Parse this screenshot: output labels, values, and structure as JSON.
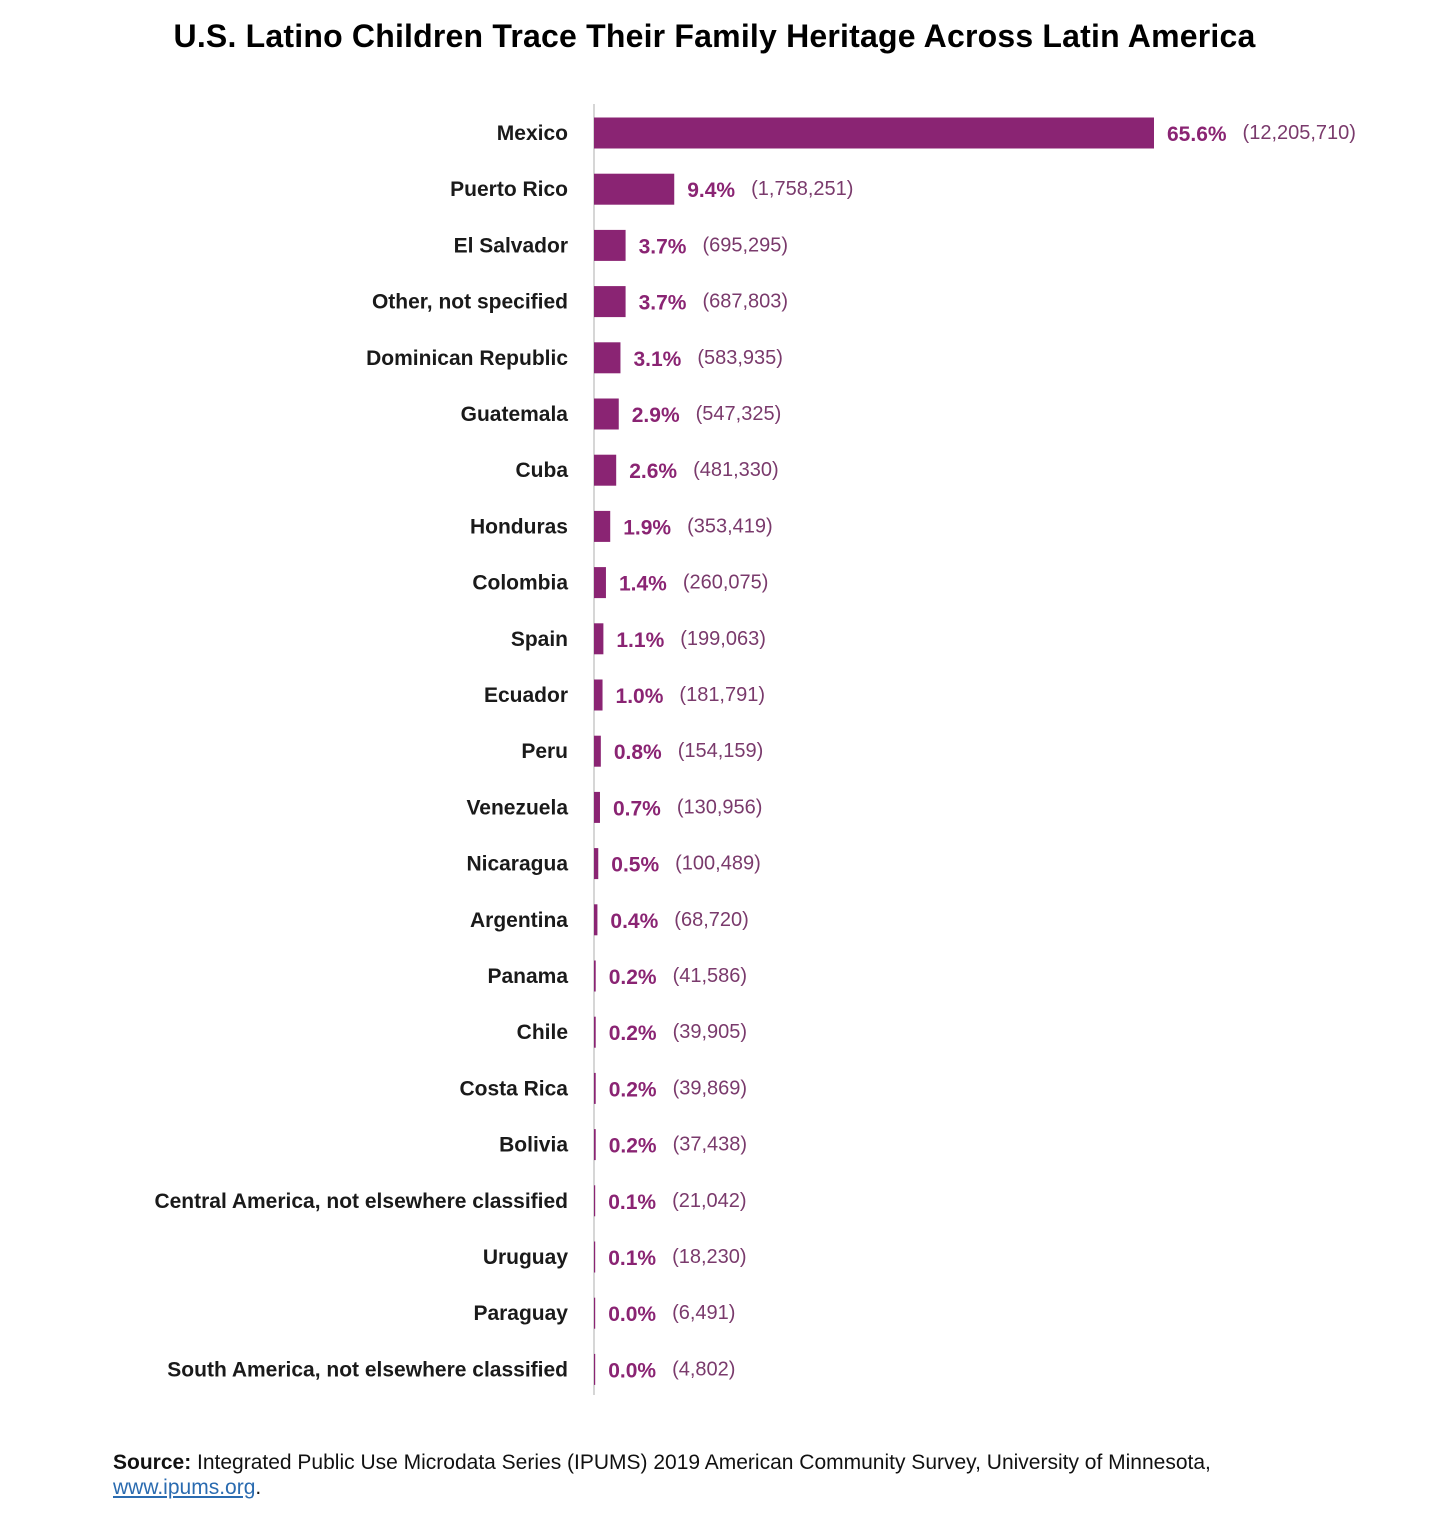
{
  "title": "U.S. Latino Children Trace Their Family Heritage Across Latin America",
  "colors": {
    "bar": "#8a2473",
    "axis": "#c8c8c8",
    "count": "#7a3a6c"
  },
  "chart_data": {
    "type": "bar",
    "orientation": "horizontal",
    "title": "U.S. Latino Children Trace Their Family Heritage Across Latin America",
    "xlabel": "",
    "ylabel": "",
    "grid": false,
    "categories": [
      "Mexico",
      "Puerto Rico",
      "El Salvador",
      "Other, not specified",
      "Dominican Republic",
      "Guatemala",
      "Cuba",
      "Honduras",
      "Colombia",
      "Spain",
      "Ecuador",
      "Peru",
      "Venezuela",
      "Nicaragua",
      "Argentina",
      "Panama",
      "Chile",
      "Costa Rica",
      "Bolivia",
      "Central America, not elsewhere classified",
      "Uruguay",
      "Paraguay",
      "South America, not elsewhere classified"
    ],
    "values": [
      65.6,
      9.4,
      3.7,
      3.7,
      3.1,
      2.9,
      2.6,
      1.9,
      1.4,
      1.1,
      1.0,
      0.8,
      0.7,
      0.5,
      0.4,
      0.2,
      0.2,
      0.2,
      0.2,
      0.1,
      0.1,
      0.0,
      0.0
    ],
    "value_labels": [
      "65.6%",
      "9.4%",
      "3.7%",
      "3.7%",
      "3.1%",
      "2.9%",
      "2.6%",
      "1.9%",
      "1.4%",
      "1.1%",
      "1.0%",
      "0.8%",
      "0.7%",
      "0.5%",
      "0.4%",
      "0.2%",
      "0.2%",
      "0.2%",
      "0.2%",
      "0.1%",
      "0.1%",
      "0.0%",
      "0.0%"
    ],
    "counts": [
      "(12,205,710)",
      "(1,758,251)",
      "(695,295)",
      "(687,803)",
      "(583,935)",
      "(547,325)",
      "(481,330)",
      "(353,419)",
      "(260,075)",
      "(199,063)",
      "(181,791)",
      "(154,159)",
      "(130,956)",
      "(100,489)",
      "(68,720)",
      "(41,586)",
      "(39,905)",
      "(39,869)",
      "(37,438)",
      "(21,042)",
      "(18,230)",
      "(6,491)",
      "(4,802)"
    ]
  },
  "source": {
    "label": "Source:",
    "text": " Integrated Public Use Microdata Series (IPUMS) 2019 American Community Survey, University of Minnesota, ",
    "link": "www.ipums.org",
    "end": "."
  }
}
